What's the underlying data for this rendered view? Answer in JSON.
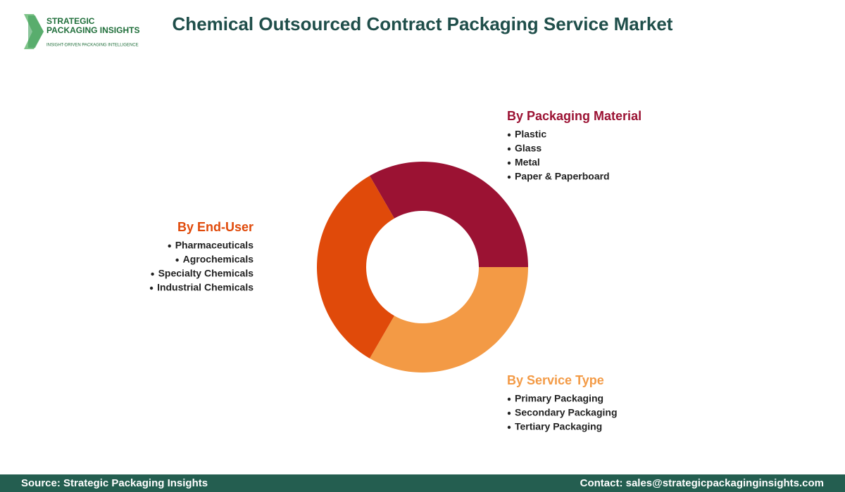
{
  "header": {
    "title": "Chemical Outsourced Contract Packaging Service Market"
  },
  "logo": {
    "line1": "STRATEGIC",
    "line2": "PACKAGING INSIGHTS",
    "tagline": "INSIGHT-DRIVEN PACKAGING INTELLIGENCE"
  },
  "segments": [
    {
      "title": "By Packaging Material",
      "color": "#9b1233",
      "items": [
        "Plastic",
        "Glass",
        "Metal",
        "Paper & Paperboard"
      ]
    },
    {
      "title": "By Service Type",
      "color": "#f39a45",
      "items": [
        "Primary Packaging",
        "Secondary Packaging",
        "Tertiary Packaging"
      ]
    },
    {
      "title": "By End-User",
      "color": "#e04a0a",
      "items": [
        "Pharmaceuticals",
        "Agrochemicals",
        "Specialty Chemicals",
        "Industrial Chemicals"
      ]
    }
  ],
  "footer": {
    "source": "Source: Strategic Packaging Insights",
    "contact": "Contact: sales@strategicpackaginginsights.com"
  }
}
